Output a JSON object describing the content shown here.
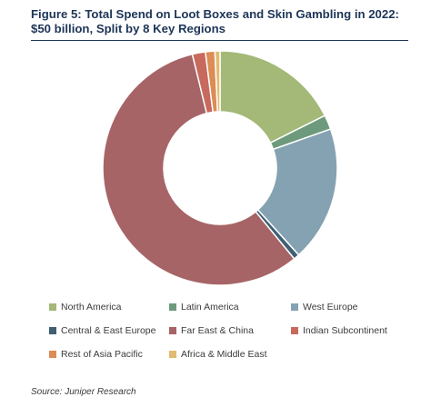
{
  "title_line1": "Figure 5: Total Spend on Loot Boxes and Skin Gambling in 2022:",
  "title_line2": "$50 billion, Split by 8 Key Regions",
  "source": "Source: Juniper Research",
  "chart_data": {
    "type": "pie",
    "variant": "donut",
    "title": "Figure 5: Total Spend on Loot Boxes and Skin Gambling in 2022: $50 billion, Split by 8 Key Regions",
    "legend_placement": "bottom",
    "categories": [
      "North America",
      "Latin America",
      "West Europe",
      "Central & East Europe",
      "Far East & China",
      "Indian Subcontinent",
      "Rest of Asia Pacific",
      "Africa & Middle East"
    ],
    "values": [
      17.6,
      2.0,
      18.7,
      0.8,
      57.1,
      1.8,
      1.3,
      0.7
    ],
    "colors": [
      "#a4b877",
      "#6d9a7c",
      "#85a2b2",
      "#3f5f73",
      "#a66466",
      "#c8695e",
      "#dc8c55",
      "#e2bb72"
    ]
  }
}
